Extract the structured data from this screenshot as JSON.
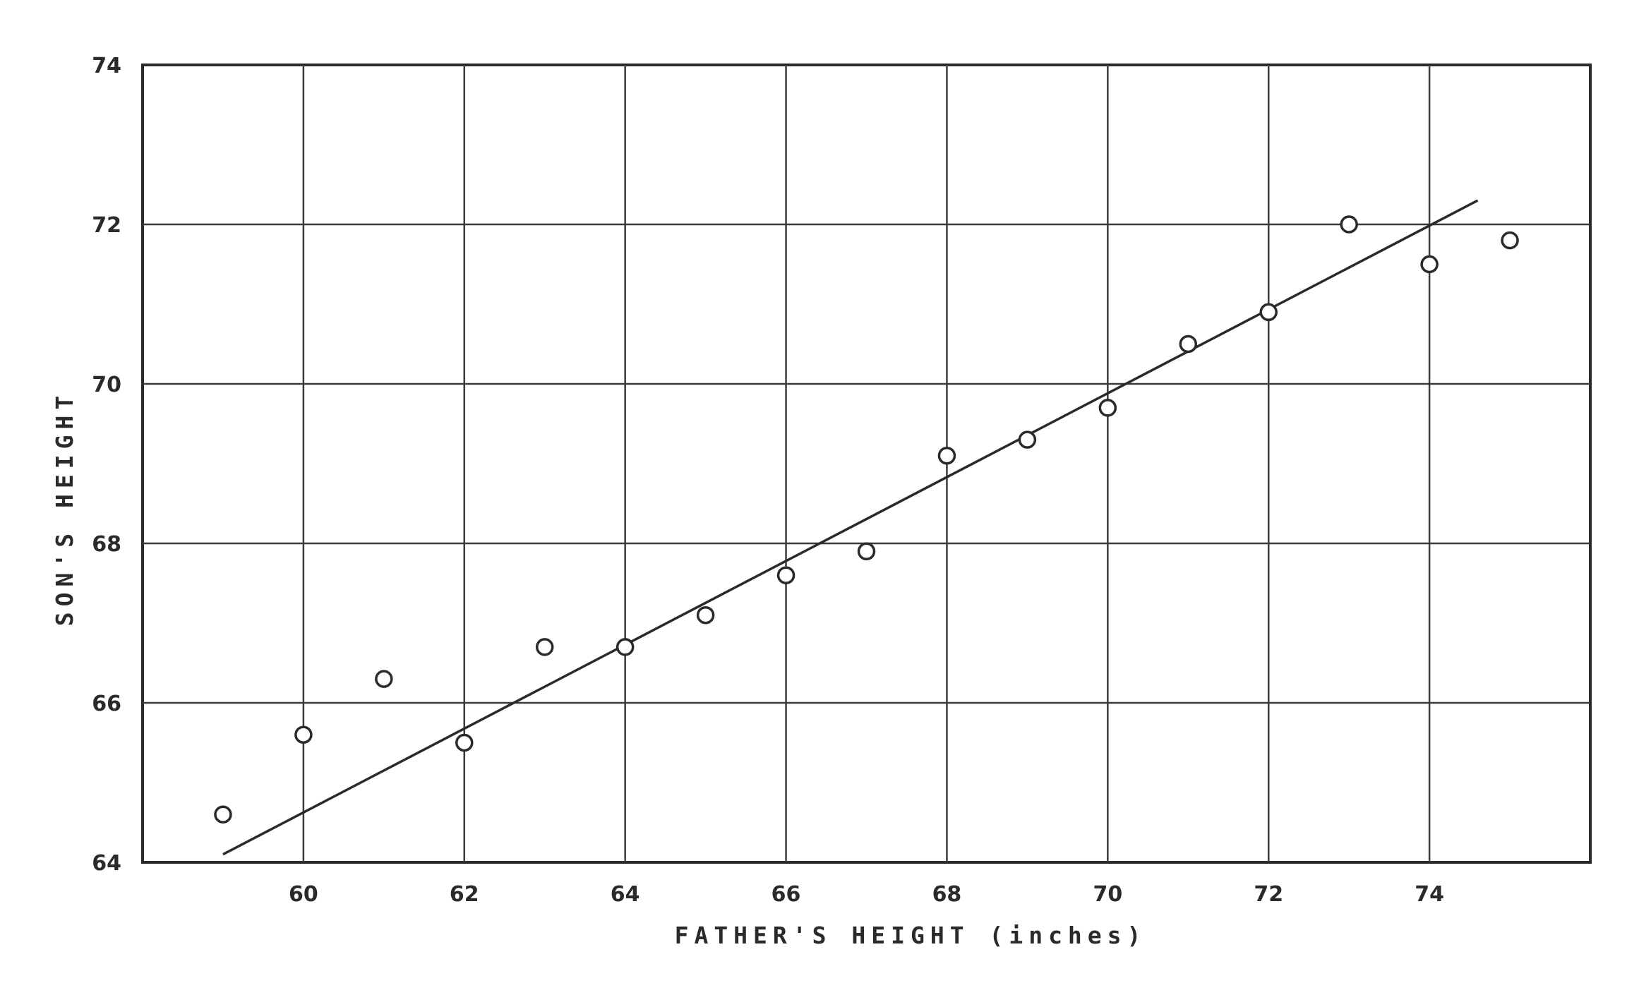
{
  "chart_data": {
    "type": "scatter",
    "title": "",
    "xlabel": "FATHER'S HEIGHT (inches)",
    "ylabel": "SON'S HEIGHT",
    "xlim": [
      58,
      76
    ],
    "ylim": [
      64,
      74
    ],
    "x_ticks": [
      "60",
      "62",
      "64",
      "66",
      "68",
      "70",
      "72",
      "74"
    ],
    "y_ticks": [
      "64",
      "66",
      "68",
      "70",
      "72",
      "74"
    ],
    "grid": true,
    "legend": "none",
    "series": [
      {
        "marker": "open-circle",
        "points": [
          {
            "x": 59,
            "y": 64.6
          },
          {
            "x": 60,
            "y": 65.6
          },
          {
            "x": 61,
            "y": 66.3
          },
          {
            "x": 62,
            "y": 65.5
          },
          {
            "x": 63,
            "y": 66.7
          },
          {
            "x": 64,
            "y": 66.7
          },
          {
            "x": 65,
            "y": 67.1
          },
          {
            "x": 66,
            "y": 67.6
          },
          {
            "x": 67,
            "y": 67.9
          },
          {
            "x": 68,
            "y": 69.1
          },
          {
            "x": 69,
            "y": 69.3
          },
          {
            "x": 70,
            "y": 69.7
          },
          {
            "x": 71,
            "y": 70.5
          },
          {
            "x": 72,
            "y": 70.9
          },
          {
            "x": 73,
            "y": 72.0
          },
          {
            "x": 74,
            "y": 71.5
          },
          {
            "x": 75,
            "y": 71.8
          }
        ]
      }
    ],
    "fit_line": {
      "x": [
        59,
        74.6
      ],
      "y": [
        64.1,
        72.3
      ]
    },
    "colors": {
      "ink": "#2a2a2a",
      "grid": "#3a3a3a",
      "background": "#ffffff"
    }
  }
}
